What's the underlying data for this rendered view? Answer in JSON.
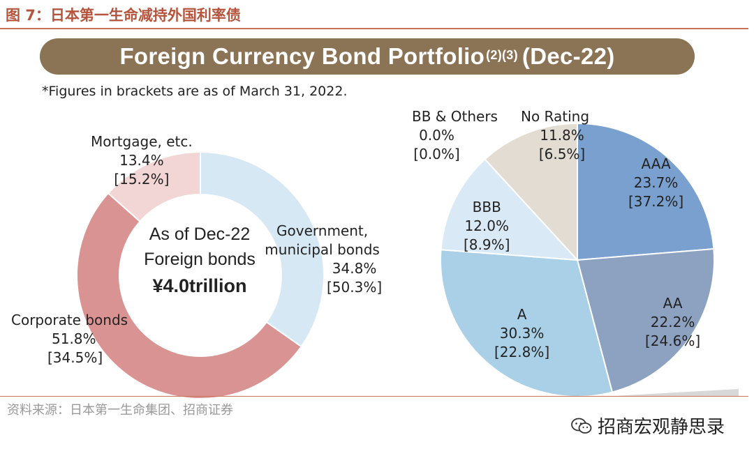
{
  "figure_title": "图 7：日本第一生命减持外国利率债",
  "banner": {
    "title": "Foreign Currency Bond Portfolio",
    "superscript": "(2)(3)",
    "period": "(Dec-22)"
  },
  "note": "*Figures in brackets are as of March 31, 2022.",
  "source": "资料来源：日本第一生命集团、招商证券",
  "watermark": "招商宏观静思录",
  "chart_data": [
    {
      "type": "pie",
      "variant": "donut",
      "center": {
        "line1": "As of Dec-22",
        "line2": "Foreign bonds",
        "line3": "¥4.0trillion"
      },
      "slices": [
        {
          "label": "Government,",
          "label2": "municipal  bonds",
          "value": 34.8,
          "value_text": "34.8%",
          "prior_text": "[50.3%]",
          "color": "#d6e8f4"
        },
        {
          "label": "Corporate bonds",
          "label2": "",
          "value": 51.8,
          "value_text": "51.8%",
          "prior_text": "[34.5%]",
          "color": "#da9393"
        },
        {
          "label": "Mortgage, etc.",
          "label2": "",
          "value": 13.4,
          "value_text": "13.4%",
          "prior_text": "[15.2%]",
          "color": "#f2d5d5"
        }
      ]
    },
    {
      "type": "pie",
      "variant": "pie",
      "slices": [
        {
          "label": "AAA",
          "value": 23.7,
          "value_text": "23.7%",
          "prior_text": "[37.2%]",
          "color": "#7aa0cf"
        },
        {
          "label": "AA",
          "value": 22.2,
          "value_text": "22.2%",
          "prior_text": "[24.6%]",
          "color": "#8ca2c0"
        },
        {
          "label": "A",
          "value": 30.3,
          "value_text": "30.3%",
          "prior_text": "[22.8%]",
          "color": "#a9d0e6"
        },
        {
          "label": "BBB",
          "value": 12.0,
          "value_text": "12.0%",
          "prior_text": "[8.9%]",
          "color": "#d9e9f5"
        },
        {
          "label": "BB & Others",
          "value": 0.0,
          "value_text": "0.0%",
          "prior_text": "[0.0%]",
          "color": "#e7e1d8"
        },
        {
          "label": "No Rating",
          "value": 11.8,
          "value_text": "11.8%",
          "prior_text": "[6.5%]",
          "color": "#e2dcd3"
        }
      ]
    }
  ]
}
